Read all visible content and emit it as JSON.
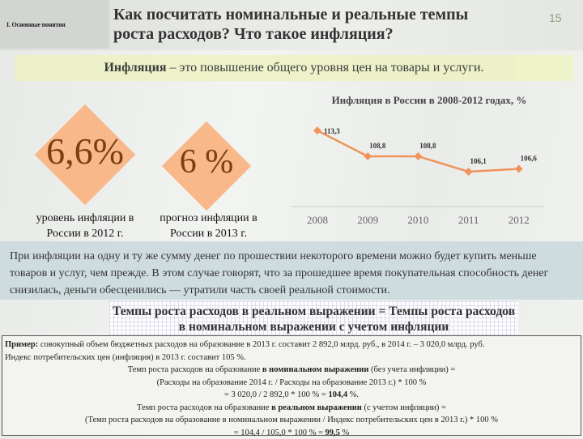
{
  "header": {
    "section": "I. Основные понятия",
    "title_line1": "Как посчитать номинальные и реальные темпы",
    "title_line2": "роста расходов? Что такое инфляция?",
    "page_number": "15"
  },
  "definition": {
    "term": "Инфляция",
    "text": " – это повышение общего уровня цен на товары и услуги."
  },
  "stats": [
    {
      "value": "6,6%",
      "caption_line1": "уровень инфляции в",
      "caption_line2": "России в 2012 г."
    },
    {
      "value": "6 %",
      "caption_line1": "прогноз инфляции в",
      "caption_line2": "России в 2013 г."
    }
  ],
  "chart_data": {
    "type": "line",
    "title": "Инфляция в России в 2008-2012 годах, %",
    "categories": [
      "2008",
      "2009",
      "2010",
      "2011",
      "2012"
    ],
    "values": [
      113.3,
      108.8,
      108.8,
      106.1,
      106.6
    ],
    "data_labels": [
      "113,3",
      "108,8",
      "108,8",
      "106,1",
      "106,6"
    ],
    "ylim": [
      100,
      115
    ],
    "grid": false,
    "color": "#f0935a"
  },
  "paragraph": "При инфляции на одну и ту же сумму денег по прошествии некоторого времени можно будет купить меньше товаров и услуг, чем прежде. В этом случае говорят, что за прошедшее время покупательная способность денег снизилась, деньги обесценились — утратили часть своей реальной стоимости.",
  "formula": {
    "line1": "Темпы роста расходов в реальном выражении = Темпы роста расходов",
    "line2": "в номинальном выражении с учетом инфляции"
  },
  "example": {
    "label": "Пример:",
    "text1": " совокупный объем бюджетных расходов на образование в 2013 г. составит 2 892,0 млрд. руб., в 2014 г. – 3 020,0 млрд. руб.",
    "text2": "Индекс потребительских цен (инфляция) в 2013 г. составит 105 %.",
    "nom_a": "Темп роста расходов на образование ",
    "nom_b": "в номинальном выражении",
    "nom_c": " (без учета инфляции) =",
    "nom_formula": "(Расходы на образование 2014 г. / Расходы на образование 2013 г.) * 100 %",
    "nom_calc": "= 3 020,0 / 2 892,0 * 100 % = ",
    "nom_result": "104,4",
    "nom_unit": " %.",
    "real_a": "Темп роста расходов на образование ",
    "real_b": "в реальном выражении",
    "real_c": " (с учетом инфляции) =",
    "real_formula": "(Темп роста расходов на образование в номинальном выражении / Индекс потребительских цен в 2013 г.) * 100 %",
    "real_calc": "= 104,4 / 105,0  * 100 % = ",
    "real_result": "99,5",
    "real_unit": " %"
  }
}
